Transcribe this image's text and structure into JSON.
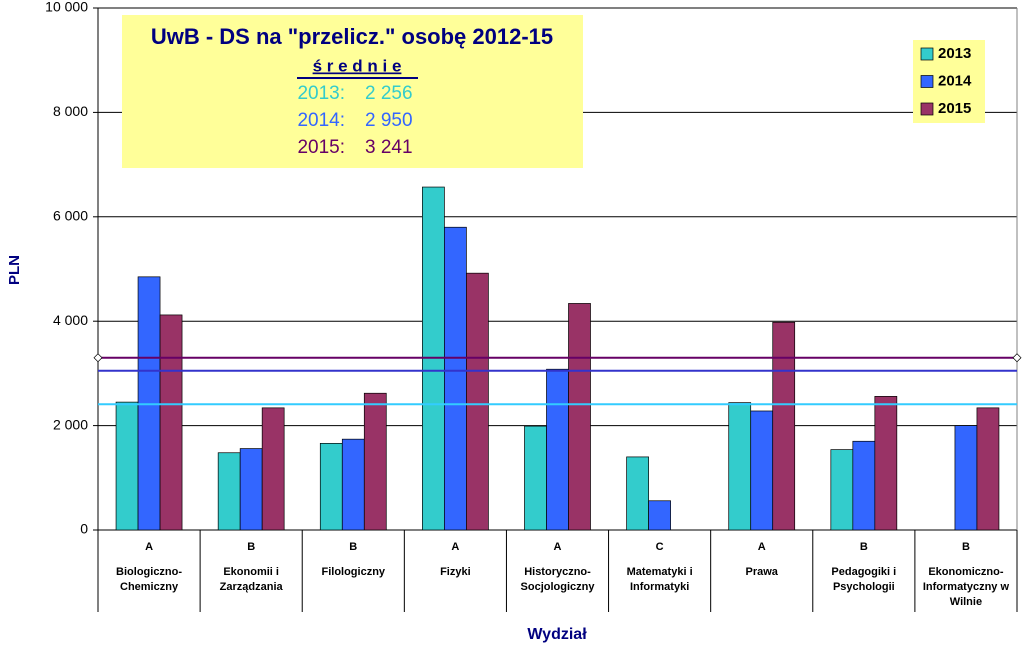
{
  "chart_data": {
    "type": "bar",
    "y_label": "PLN",
    "x_label": "Wydział",
    "groups": [
      "A",
      "B",
      "B",
      "A",
      "A",
      "C",
      "A",
      "B",
      "B"
    ],
    "categories": [
      "Biologiczno-Chemiczny",
      "Ekonomii i Zarządzania",
      "Filologiczny",
      "Fizyki",
      "Historyczno-Socjologiczny",
      "Matematyki i Informatyki",
      "Prawa",
      "Pedagogiki i Psychologii",
      "Ekonomiczno-Informatyczny w Wilnie"
    ],
    "series": [
      {
        "name": "2013",
        "color": "#33cccc",
        "values": [
          2450,
          1480,
          1660,
          6570,
          1990,
          1400,
          2440,
          1540,
          null
        ]
      },
      {
        "name": "2014",
        "color": "#3366ff",
        "values": [
          4850,
          1560,
          1740,
          5800,
          3080,
          560,
          2280,
          1700,
          2000
        ]
      },
      {
        "name": "2015",
        "color": "#993366",
        "values": [
          4120,
          2340,
          2620,
          4920,
          4340,
          null,
          3980,
          2560,
          2340
        ]
      }
    ],
    "reference_lines": [
      {
        "value": 3300,
        "color": "#660066"
      },
      {
        "value": 3050,
        "color": "#3333cc"
      },
      {
        "value": 2410,
        "color": "#33ccff"
      }
    ],
    "annotation": {
      "title": "UwB - DS na \"przelicz.\" osobę 2012-15",
      "subtitle": "ś r e d n i e",
      "averages": [
        {
          "label": "2013:",
          "text": "2 256",
          "color": "#33cccc"
        },
        {
          "label": "2014:",
          "text": "2 950",
          "color": "#3366ff"
        },
        {
          "label": "2015:",
          "text": "3 241",
          "color": "#660066"
        }
      ]
    },
    "ylim": [
      0,
      10000
    ],
    "yticks": [
      0,
      {
        "value": 2000,
        "label": "2 000"
      },
      {
        "value": 4000,
        "label": "4 000"
      },
      {
        "value": 6000,
        "label": "6 000"
      },
      {
        "value": 8000,
        "label": "8 000"
      },
      {
        "value": 10000,
        "label": "10 000"
      }
    ],
    "grid": true,
    "legend": "top-right"
  }
}
